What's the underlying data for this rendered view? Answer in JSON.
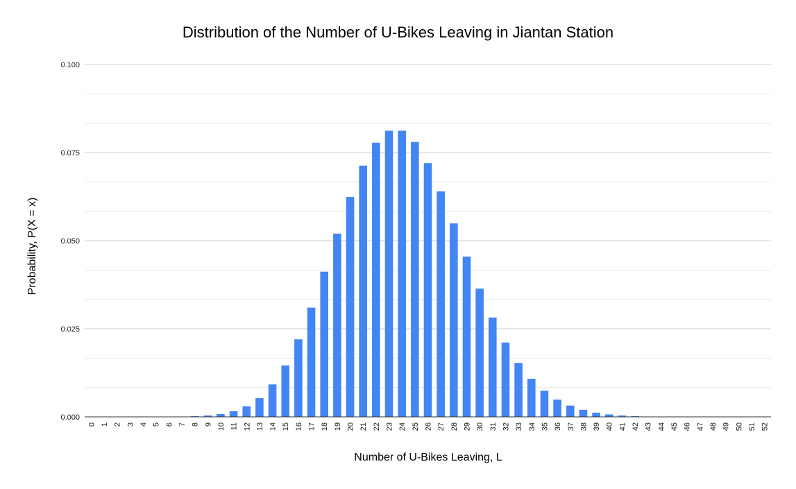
{
  "chart_data": {
    "type": "bar",
    "title": "Distribution of the Number of U-Bikes Leaving in Jiantan Station",
    "xlabel": "Number of U-Bikes Leaving, L",
    "ylabel": "Probability, P(X = x)",
    "categories": [
      "0",
      "1",
      "2",
      "3",
      "4",
      "5",
      "6",
      "7",
      "8",
      "9",
      "10",
      "11",
      "12",
      "13",
      "14",
      "15",
      "16",
      "17",
      "18",
      "19",
      "20",
      "21",
      "22",
      "23",
      "24",
      "25",
      "26",
      "27",
      "28",
      "29",
      "30",
      "31",
      "32",
      "33",
      "34",
      "35",
      "36",
      "37",
      "38",
      "39",
      "40",
      "41",
      "42",
      "43",
      "44",
      "45",
      "46",
      "47",
      "48",
      "49",
      "50",
      "51",
      "52"
    ],
    "values": [
      0,
      0,
      0,
      0,
      0,
      0,
      0,
      0.0001,
      0.0002,
      0.0004,
      0.0008,
      0.0016,
      0.003,
      0.0053,
      0.0092,
      0.0146,
      0.022,
      0.031,
      0.0412,
      0.052,
      0.0624,
      0.0713,
      0.0778,
      0.0812,
      0.0812,
      0.078,
      0.072,
      0.064,
      0.0549,
      0.0455,
      0.0364,
      0.0282,
      0.0211,
      0.0153,
      0.0108,
      0.0074,
      0.0049,
      0.0032,
      0.002,
      0.0012,
      0.0007,
      0.0004,
      0.0002,
      0.0001,
      0.0001,
      0,
      0,
      0,
      0,
      0,
      0,
      0,
      0
    ],
    "ylim": [
      0,
      0.1
    ],
    "yticks": [
      "0.000",
      "0.025",
      "0.050",
      "0.075",
      "0.100"
    ],
    "grid": true,
    "legend": "none",
    "colors": {
      "bar": "#4285f4",
      "grid_major": "#cccccc",
      "grid_minor": "#e8e8e8",
      "axis": "#333333"
    }
  }
}
